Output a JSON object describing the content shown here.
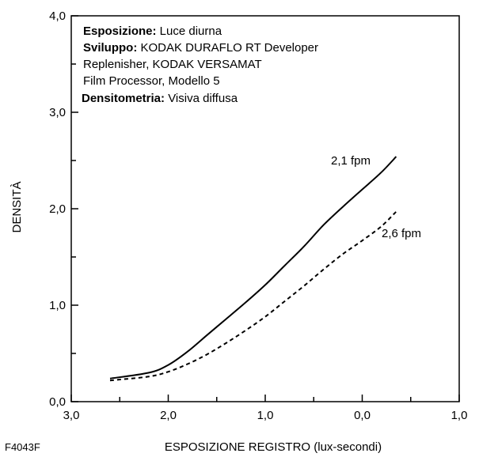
{
  "chart_data": {
    "type": "line",
    "xlabel": "ESPOSIZIONE REGISTRO (lux-secondi)",
    "ylabel": "DENSITÀ",
    "xlim": [
      3.0,
      -1.0
    ],
    "ylim": [
      0.0,
      4.0
    ],
    "x_ticks": [
      {
        "value": 3.0,
        "label": "3,0"
      },
      {
        "value": 2.0,
        "label": "2,0"
      },
      {
        "value": 1.0,
        "label": "1,0"
      },
      {
        "value": 0.0,
        "label": "0,0"
      },
      {
        "value": -1.0,
        "label": "1,0"
      }
    ],
    "y_ticks": [
      {
        "value": 0.0,
        "label": "0,0"
      },
      {
        "value": 1.0,
        "label": "1,0"
      },
      {
        "value": 2.0,
        "label": "2,0"
      },
      {
        "value": 3.0,
        "label": "3,0"
      },
      {
        "value": 4.0,
        "label": "4,0"
      }
    ],
    "grid": false,
    "series": [
      {
        "name": "2,1 fpm",
        "style": "solid",
        "x": [
          2.6,
          2.2,
          2.0,
          1.8,
          1.6,
          1.4,
          1.2,
          1.0,
          0.8,
          0.6,
          0.4,
          0.2,
          0.0,
          -0.2,
          -0.35
        ],
        "y": [
          0.24,
          0.3,
          0.38,
          0.52,
          0.69,
          0.86,
          1.03,
          1.21,
          1.41,
          1.61,
          1.83,
          2.02,
          2.2,
          2.38,
          2.54
        ]
      },
      {
        "name": "2,6 fpm",
        "style": "dashed",
        "x": [
          2.6,
          2.2,
          2.0,
          1.8,
          1.6,
          1.4,
          1.2,
          1.0,
          0.8,
          0.6,
          0.4,
          0.2,
          0.0,
          -0.2,
          -0.35
        ],
        "y": [
          0.22,
          0.26,
          0.31,
          0.39,
          0.49,
          0.61,
          0.74,
          0.88,
          1.04,
          1.2,
          1.37,
          1.53,
          1.67,
          1.82,
          1.97
        ]
      }
    ],
    "annotations": [
      {
        "bold": "Esposizione:",
        "text": " Luce diurna"
      },
      {
        "bold": "Sviluppo:",
        "text": " KODAK DURAFLO RT Developer"
      },
      {
        "bold": "",
        "text": "Replenisher, KODAK VERSAMAT"
      },
      {
        "bold": "",
        "text": "Film Processor, Modello 5"
      },
      {
        "bold": "Densitometria:",
        "text": " Visiva diffusa"
      }
    ]
  },
  "figure_id": "F4043F"
}
